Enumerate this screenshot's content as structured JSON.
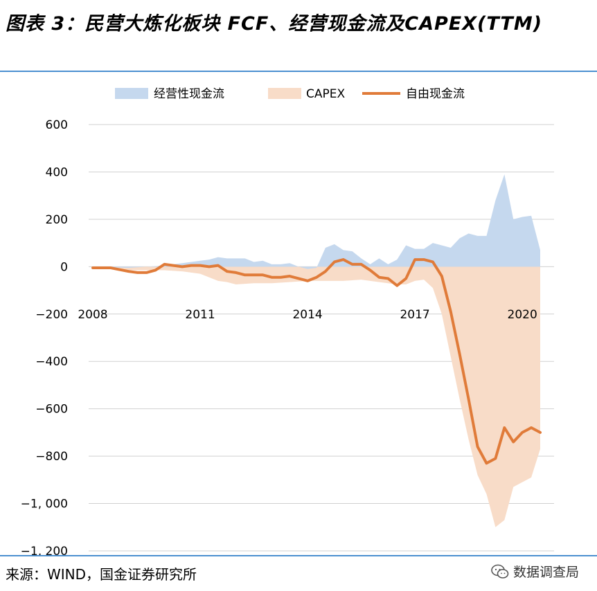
{
  "header": {
    "title": "图表 3：民营大炼化板块 FCF、经营现金流及CAPEX(TTM)"
  },
  "footer": {
    "source": "来源：WIND，国金证券研究所",
    "watermark": "数据调查局",
    "watermark_icon": "wechat-icon"
  },
  "chart_data": {
    "type": "area",
    "title": "",
    "xlabel": "",
    "ylabel": "",
    "ylim": [
      -1200,
      600
    ],
    "yticks": [
      600,
      400,
      200,
      0,
      -200,
      -400,
      -600,
      -800,
      -1000,
      -1200
    ],
    "ytick_labels": [
      "600",
      "400",
      "200",
      "0",
      "−200",
      "−400",
      "−600",
      "−800",
      "−1, 000",
      "−1, 200"
    ],
    "xlim": [
      2008.0,
      2020.5
    ],
    "xticks": [
      2008,
      2011,
      2014,
      2017,
      2020
    ],
    "xtick_labels": [
      "2008",
      "2011",
      "2014",
      "2017",
      "2020"
    ],
    "grid": "horizontal",
    "legend_position": "top",
    "series": [
      {
        "name": "经营性现金流",
        "kind": "area",
        "color": "#c5d8ee",
        "x": [
          2008.0,
          2008.5,
          2009.0,
          2009.5,
          2010.0,
          2010.25,
          2010.5,
          2010.75,
          2011.0,
          2011.25,
          2011.5,
          2011.75,
          2012.0,
          2012.25,
          2012.5,
          2012.75,
          2013.0,
          2013.25,
          2013.5,
          2013.75,
          2014.0,
          2014.25,
          2014.5,
          2014.75,
          2015.0,
          2015.25,
          2015.5,
          2015.75,
          2016.0,
          2016.25,
          2016.5,
          2016.75,
          2017.0,
          2017.25,
          2017.5,
          2017.75,
          2018.0,
          2018.25,
          2018.5,
          2018.75,
          2019.0,
          2019.25,
          2019.5,
          2019.75,
          2020.0,
          2020.25,
          2020.5
        ],
        "values": [
          -5,
          -3,
          -5,
          0,
          5,
          10,
          15,
          20,
          25,
          30,
          40,
          35,
          35,
          35,
          20,
          25,
          10,
          10,
          15,
          0,
          -10,
          -5,
          80,
          95,
          70,
          65,
          35,
          10,
          35,
          10,
          30,
          90,
          75,
          75,
          100,
          90,
          80,
          120,
          140,
          130,
          130,
          280,
          390,
          200,
          210,
          215,
          70
        ]
      },
      {
        "name": "CAPEX",
        "kind": "area",
        "color": "#f8dcc8",
        "x": [
          2008.0,
          2008.5,
          2009.0,
          2009.5,
          2010.0,
          2010.5,
          2011.0,
          2011.5,
          2011.75,
          2012.0,
          2012.5,
          2013.0,
          2013.5,
          2014.0,
          2014.5,
          2015.0,
          2015.5,
          2016.0,
          2016.5,
          2016.75,
          2017.0,
          2017.25,
          2017.5,
          2017.75,
          2018.0,
          2018.25,
          2018.5,
          2018.75,
          2019.0,
          2019.25,
          2019.5,
          2019.75,
          2020.0,
          2020.25,
          2020.5
        ],
        "values": [
          -5,
          -10,
          -15,
          -15,
          -15,
          -20,
          -30,
          -60,
          -65,
          -75,
          -70,
          -70,
          -65,
          -60,
          -60,
          -60,
          -55,
          -65,
          -75,
          -75,
          -60,
          -55,
          -90,
          -200,
          -380,
          -560,
          -730,
          -880,
          -960,
          -1100,
          -1070,
          -930,
          -910,
          -890,
          -770
        ]
      },
      {
        "name": "自由现金流",
        "kind": "line",
        "color": "#e07b39",
        "x": [
          2008.0,
          2008.5,
          2009.0,
          2009.25,
          2009.5,
          2009.75,
          2010.0,
          2010.25,
          2010.5,
          2010.75,
          2011.0,
          2011.25,
          2011.5,
          2011.75,
          2012.0,
          2012.25,
          2012.5,
          2012.75,
          2013.0,
          2013.25,
          2013.5,
          2013.75,
          2014.0,
          2014.25,
          2014.5,
          2014.75,
          2015.0,
          2015.25,
          2015.5,
          2015.75,
          2016.0,
          2016.25,
          2016.5,
          2016.75,
          2017.0,
          2017.25,
          2017.5,
          2017.75,
          2018.0,
          2018.25,
          2018.5,
          2018.75,
          2019.0,
          2019.25,
          2019.5,
          2019.75,
          2020.0,
          2020.25,
          2020.5
        ],
        "values": [
          -5,
          -5,
          -20,
          -25,
          -25,
          -15,
          10,
          5,
          0,
          5,
          5,
          0,
          5,
          -20,
          -25,
          -35,
          -35,
          -35,
          -45,
          -45,
          -40,
          -50,
          -60,
          -45,
          -20,
          20,
          30,
          10,
          10,
          -15,
          -45,
          -50,
          -80,
          -50,
          30,
          30,
          20,
          -40,
          -190,
          -370,
          -560,
          -760,
          -830,
          -810,
          -680,
          -740,
          -700,
          -680,
          -700
        ]
      }
    ]
  }
}
